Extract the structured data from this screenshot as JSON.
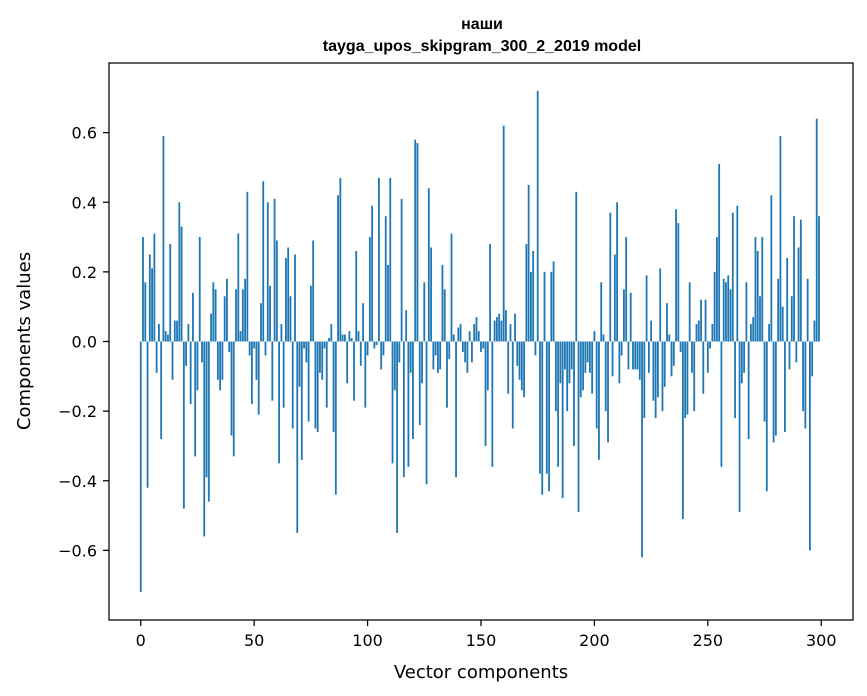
{
  "chart_data": {
    "type": "bar",
    "title_line1": "наши",
    "title_line2": "tayga_upos_skipgram_300_2_2019 model",
    "xlabel": "Vector components",
    "ylabel": "Components values",
    "xlim": [
      -14,
      314
    ],
    "ylim": [
      -0.8,
      0.8
    ],
    "xticks": [
      0,
      50,
      100,
      150,
      200,
      250,
      300
    ],
    "xtick_labels": [
      "0",
      "50",
      "100",
      "150",
      "200",
      "250",
      "300"
    ],
    "yticks": [
      -0.6,
      -0.4,
      -0.2,
      0.0,
      0.2,
      0.4,
      0.6
    ],
    "ytick_labels": [
      "−0.6",
      "−0.4",
      "−0.2",
      "0.0",
      "0.2",
      "0.4",
      "0.6"
    ],
    "bar_color": "#1f77b4",
    "series": [
      {
        "name": "components",
        "values": [
          -0.72,
          0.3,
          0.17,
          -0.42,
          0.25,
          0.21,
          0.31,
          -0.09,
          0.05,
          -0.28,
          0.59,
          0.03,
          0.02,
          0.28,
          -0.11,
          0.06,
          0.06,
          0.4,
          0.33,
          -0.48,
          -0.07,
          0.05,
          -0.18,
          0.14,
          -0.33,
          -0.14,
          0.3,
          -0.06,
          -0.56,
          -0.39,
          -0.46,
          0.08,
          0.17,
          0.15,
          -0.11,
          -0.14,
          -0.11,
          0.13,
          0.18,
          -0.03,
          -0.27,
          -0.33,
          0.15,
          0.31,
          0.03,
          0.15,
          0.18,
          0.43,
          -0.04,
          -0.18,
          -0.02,
          -0.11,
          -0.21,
          0.11,
          0.46,
          -0.04,
          0.4,
          0.16,
          -0.17,
          0.41,
          0.29,
          -0.35,
          0.05,
          -0.19,
          0.24,
          0.27,
          0.13,
          -0.25,
          0.25,
          -0.55,
          -0.13,
          -0.34,
          -0.02,
          -0.06,
          -0.23,
          0.16,
          0.29,
          -0.25,
          -0.26,
          -0.09,
          -0.11,
          -0.02,
          -0.19,
          0.01,
          0.05,
          -0.26,
          -0.44,
          0.42,
          0.47,
          0.02,
          0.02,
          -0.12,
          0.03,
          0.01,
          -0.17,
          0.26,
          0.03,
          -0.07,
          0.11,
          -0.19,
          -0.04,
          0.3,
          0.39,
          -0.02,
          -0.01,
          0.47,
          -0.08,
          -0.04,
          0.36,
          0.22,
          0.47,
          -0.35,
          -0.14,
          -0.55,
          -0.06,
          0.41,
          -0.39,
          0.09,
          -0.36,
          -0.09,
          -0.28,
          0.58,
          0.57,
          -0.24,
          -0.12,
          0.17,
          -0.41,
          0.44,
          0.27,
          -0.08,
          -0.04,
          -0.09,
          -0.08,
          0.22,
          0.15,
          -0.19,
          -0.05,
          0.31,
          0.02,
          -0.39,
          0.04,
          0.05,
          -0.03,
          -0.06,
          -0.09,
          0.03,
          -0.06,
          0.05,
          0.07,
          0.03,
          -0.03,
          -0.02,
          -0.3,
          -0.14,
          0.28,
          -0.36,
          0.06,
          0.07,
          0.08,
          0.06,
          0.62,
          0.09,
          -0.15,
          0.05,
          -0.25,
          0.08,
          -0.07,
          -0.11,
          -0.14,
          -0.16,
          0.28,
          0.45,
          0.2,
          0.26,
          -0.04,
          0.72,
          -0.38,
          -0.44,
          0.2,
          -0.38,
          -0.43,
          0.2,
          0.23,
          -0.2,
          -0.36,
          -0.12,
          -0.45,
          -0.08,
          -0.2,
          -0.12,
          -0.08,
          -0.3,
          0.43,
          -0.49,
          -0.16,
          -0.14,
          -0.09,
          -0.06,
          -0.09,
          -0.15,
          0.03,
          -0.25,
          -0.34,
          0.17,
          0.02,
          -0.2,
          -0.29,
          0.37,
          -0.1,
          0.25,
          0.4,
          -0.12,
          -0.04,
          0.15,
          0.3,
          -0.08,
          0.14,
          -0.08,
          -0.08,
          -0.08,
          -0.11,
          -0.62,
          -0.22,
          0.19,
          -0.09,
          0.06,
          -0.17,
          -0.22,
          -0.16,
          0.21,
          -0.2,
          -0.13,
          0.11,
          0.02,
          -0.1,
          -0.07,
          0.38,
          0.34,
          -0.03,
          -0.51,
          -0.22,
          -0.21,
          0.17,
          -0.09,
          -0.2,
          0.05,
          0.06,
          0.12,
          -0.15,
          0.12,
          -0.09,
          -0.02,
          0.05,
          0.2,
          0.3,
          0.51,
          -0.36,
          0.18,
          0.17,
          0.19,
          0.15,
          0.37,
          -0.22,
          0.39,
          -0.49,
          -0.12,
          -0.09,
          0.17,
          -0.28,
          0.05,
          0.07,
          0.3,
          0.26,
          0.13,
          0.3,
          -0.23,
          -0.43,
          0.05,
          0.42,
          -0.29,
          -0.27,
          0.18,
          0.59,
          0.1,
          -0.26,
          0.24,
          -0.08,
          0.13,
          0.36,
          -0.06,
          0.27,
          0.35,
          -0.2,
          -0.25,
          0.18,
          -0.6,
          -0.1,
          0.06,
          0.64,
          0.36
        ]
      }
    ]
  }
}
